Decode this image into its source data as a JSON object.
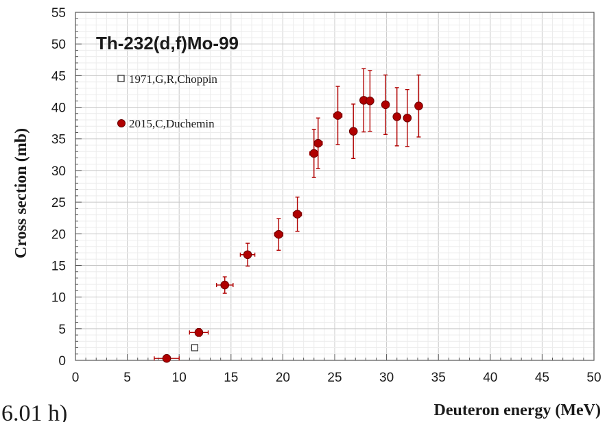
{
  "chart_data": {
    "type": "scatter",
    "title": "Th-232(d,f)Mo-99",
    "xlabel": "Deuteron energy (MeV)",
    "ylabel": "Cross section (mb)",
    "xlim": [
      0,
      50
    ],
    "ylim": [
      0,
      55
    ],
    "x_ticks": [
      "0",
      "5",
      "10",
      "15",
      "20",
      "25",
      "30",
      "35",
      "40",
      "45",
      "50"
    ],
    "y_ticks": [
      "0",
      "5",
      "10",
      "15",
      "20",
      "25",
      "30",
      "35",
      "40",
      "45",
      "50",
      "55"
    ],
    "grid": true,
    "legend_position": "top-left",
    "corner_text": "6.01 h)",
    "series": [
      {
        "name": "1971,G,R,Choppin",
        "marker": "open-square",
        "color": "#333333",
        "points": [
          {
            "x": 11.5,
            "y": 2.0
          }
        ]
      },
      {
        "name": "2015,C,Duchemin",
        "marker": "filled-circle",
        "color": "#b00000",
        "points": [
          {
            "x": 8.8,
            "y": 0.3,
            "xerr": 1.2,
            "yerr": 0.1
          },
          {
            "x": 11.9,
            "y": 4.4,
            "xerr": 0.9,
            "yerr": 0.6
          },
          {
            "x": 14.4,
            "y": 11.9,
            "xerr": 0.8,
            "yerr": 1.3
          },
          {
            "x": 16.6,
            "y": 16.7,
            "xerr": 0.7,
            "yerr": 1.8
          },
          {
            "x": 19.6,
            "y": 19.9,
            "xerr": 0.4,
            "yerr": 2.5
          },
          {
            "x": 21.4,
            "y": 23.1,
            "xerr": 0.4,
            "yerr": 2.7
          },
          {
            "x": 23.0,
            "y": 32.7,
            "xerr": 0.4,
            "yerr": 3.8
          },
          {
            "x": 23.4,
            "y": 34.3,
            "xerr": 0.4,
            "yerr": 4.0
          },
          {
            "x": 25.3,
            "y": 38.7,
            "xerr": 0.4,
            "yerr": 4.6
          },
          {
            "x": 26.8,
            "y": 36.2,
            "xerr": 0.3,
            "yerr": 4.3
          },
          {
            "x": 27.8,
            "y": 41.1,
            "xerr": 0.3,
            "yerr": 5.0
          },
          {
            "x": 28.4,
            "y": 41.0,
            "xerr": 0.3,
            "yerr": 4.8
          },
          {
            "x": 29.9,
            "y": 40.4,
            "xerr": 0.3,
            "yerr": 4.7
          },
          {
            "x": 31.0,
            "y": 38.5,
            "xerr": 0.3,
            "yerr": 4.6
          },
          {
            "x": 32.0,
            "y": 38.3,
            "xerr": 0.3,
            "yerr": 4.5
          },
          {
            "x": 33.1,
            "y": 40.2,
            "xerr": 0.3,
            "yerr": 4.9
          }
        ]
      }
    ]
  }
}
